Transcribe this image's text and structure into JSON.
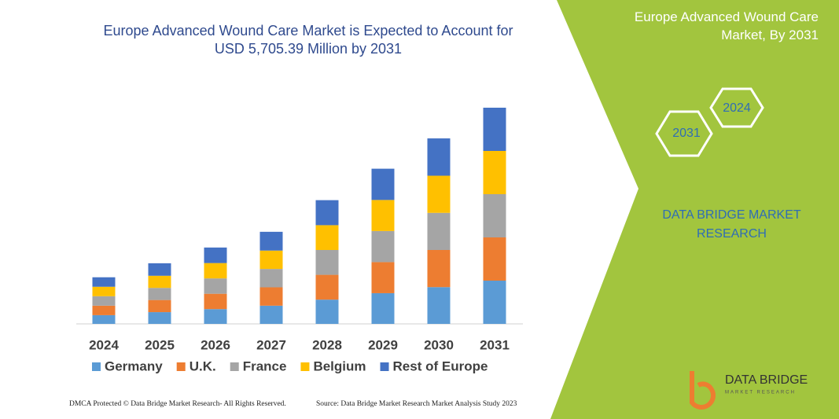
{
  "chart_data": {
    "type": "stacked-bar",
    "title": "Europe Advanced Wound Care Market is Expected to Account for USD 5,705.39 Million by 2031",
    "categories": [
      "2024",
      "2025",
      "2026",
      "2027",
      "2028",
      "2029",
      "2030",
      "2031"
    ],
    "series": [
      {
        "name": "Germany",
        "color": "#5b9bd5",
        "values": [
          230,
          310,
          390,
          480,
          640,
          810,
          970,
          1141
        ]
      },
      {
        "name": "U.K.",
        "color": "#ed7d31",
        "values": [
          250,
          320,
          405,
          485,
          655,
          820,
          980,
          1141
        ]
      },
      {
        "name": "France",
        "color": "#a5a5a5",
        "values": [
          250,
          320,
          405,
          485,
          655,
          820,
          980,
          1141
        ]
      },
      {
        "name": "Belgium",
        "color": "#ffc000",
        "values": [
          250,
          320,
          405,
          485,
          655,
          820,
          980,
          1141
        ]
      },
      {
        "name": "Rest of Europe",
        "color": "#4472c4",
        "values": [
          250,
          330,
          410,
          495,
          660,
          825,
          985,
          1141
        ]
      }
    ]
  },
  "panel": {
    "heading": "Europe Advanced Wound Care Market, By 2031",
    "hex_top": "2024",
    "hex_bottom": "2031",
    "brand": "DATA BRIDGE MARKET RESEARCH",
    "logo_name": "DATA BRIDGE",
    "logo_tagline": "MARKET RESEARCH"
  },
  "footer": {
    "left": "DMCA Protected © Data Bridge Market Research- All Rights Reserved.",
    "right": "Source: Data Bridge Market Research Market Analysis Study 2023"
  }
}
